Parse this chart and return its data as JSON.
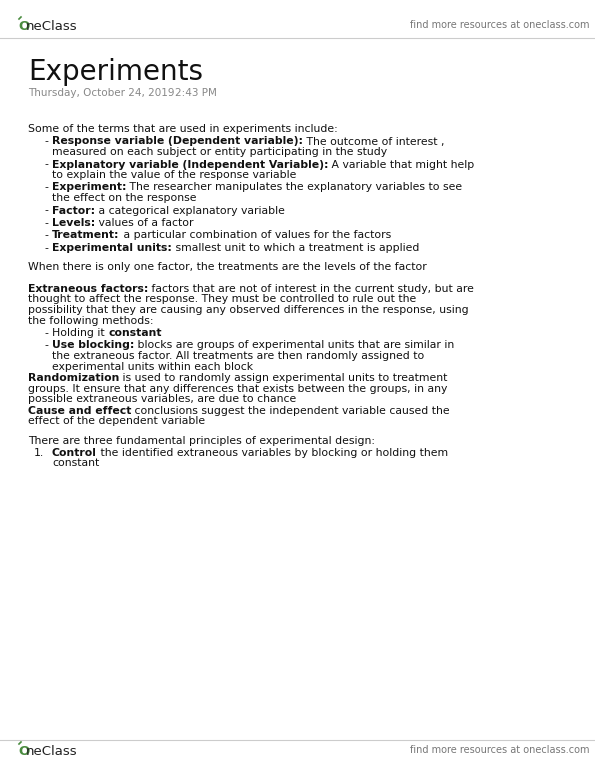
{
  "bg_color": "#ffffff",
  "header_find_text": "find more resources at oneclass.com",
  "footer_find_text": "find more resources at oneclass.com",
  "logo_text": "OneClass",
  "logo_color": "#4a8c3f",
  "title": "Experiments",
  "date_text": "Thursday, October 24, 2019",
  "time_text": "2:43 PM",
  "text_color": "#111111",
  "gray_color": "#888888",
  "header_gray": "#777777",
  "title_fontsize": 20,
  "body_fontsize": 7.8,
  "date_fontsize": 7.5,
  "header_fontsize": 8.0,
  "logo_fontsize": 9.5
}
